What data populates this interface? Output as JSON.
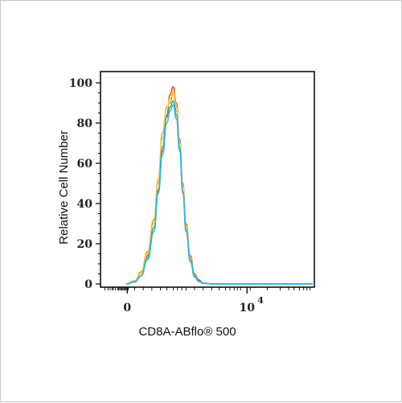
{
  "chart_data": {
    "type": "line",
    "xlabel": "CD8A-ABflo® 500",
    "ylabel": "Relative Cell Number",
    "x_scale": "biexponential",
    "x_ticks": [
      {
        "value": 0,
        "label": "0",
        "exp": ""
      },
      {
        "value": 10000,
        "label": "10",
        "exp": "4"
      }
    ],
    "ylim": [
      0,
      100
    ],
    "y_ticks": [
      "0",
      "20",
      "40",
      "60",
      "80",
      "100"
    ],
    "xlim_display": [
      0.0,
      1.0
    ],
    "series": [
      {
        "color": "#e53935",
        "x": [
          0.12,
          0.16,
          0.19,
          0.22,
          0.25,
          0.27,
          0.29,
          0.31,
          0.325,
          0.34,
          0.355,
          0.37,
          0.385,
          0.4,
          0.42,
          0.44,
          0.46,
          0.48,
          0.52
        ],
        "values": [
          0,
          1,
          5,
          14,
          28,
          46,
          66,
          84,
          94,
          98,
          90,
          72,
          50,
          30,
          14,
          5,
          2,
          0.5,
          0
        ]
      },
      {
        "color": "#fb8c00",
        "x": [
          0.12,
          0.16,
          0.19,
          0.22,
          0.25,
          0.27,
          0.29,
          0.31,
          0.325,
          0.34,
          0.355,
          0.37,
          0.385,
          0.4,
          0.42,
          0.44,
          0.46,
          0.48,
          0.52
        ],
        "values": [
          0,
          1.5,
          6,
          16,
          32,
          52,
          75,
          88,
          90,
          95,
          86,
          70,
          48,
          28,
          12,
          4,
          1.5,
          0.4,
          0
        ]
      },
      {
        "color": "#fdd835",
        "x": [
          0.12,
          0.16,
          0.19,
          0.22,
          0.25,
          0.27,
          0.29,
          0.31,
          0.325,
          0.34,
          0.355,
          0.37,
          0.385,
          0.4,
          0.42,
          0.44,
          0.46,
          0.48,
          0.52
        ],
        "values": [
          0,
          1,
          5,
          15,
          30,
          50,
          72,
          87,
          92,
          96,
          88,
          71,
          49,
          29,
          13,
          4.5,
          1.5,
          0.4,
          0
        ]
      },
      {
        "color": "#26a69a",
        "x": [
          0.12,
          0.16,
          0.19,
          0.22,
          0.25,
          0.27,
          0.29,
          0.31,
          0.325,
          0.34,
          0.355,
          0.37,
          0.385,
          0.4,
          0.42,
          0.44,
          0.46,
          0.48,
          0.52
        ],
        "values": [
          0,
          1,
          4,
          13,
          28,
          47,
          68,
          83,
          88,
          91,
          84,
          68,
          46,
          27,
          12,
          4,
          1.5,
          0.4,
          0
        ]
      },
      {
        "color": "#29b6f6",
        "x": [
          0.12,
          0.16,
          0.19,
          0.22,
          0.25,
          0.27,
          0.29,
          0.31,
          0.325,
          0.34,
          0.355,
          0.37,
          0.385,
          0.4,
          0.42,
          0.44,
          0.46,
          0.48,
          0.52
        ],
        "values": [
          0,
          1,
          4,
          12,
          26,
          45,
          64,
          80,
          86,
          89,
          82,
          66,
          45,
          26,
          11,
          3.5,
          1.2,
          0.3,
          0
        ]
      }
    ]
  }
}
